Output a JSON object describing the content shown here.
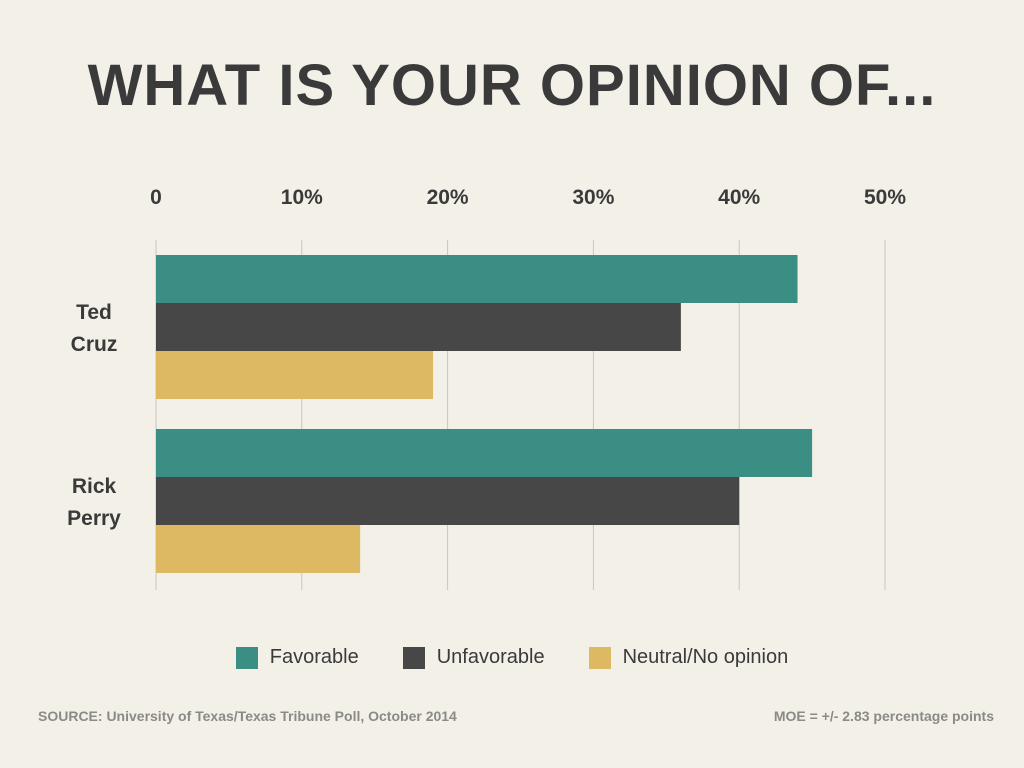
{
  "colors": {
    "favorable": "#3a8e84",
    "unfavorable": "#474747",
    "neutral": "#dcb962",
    "grid": "#c9c6bd",
    "text": "#3a3a3a"
  },
  "chart_data": {
    "type": "bar",
    "orientation": "horizontal",
    "title": "WHAT IS YOUR OPINION OF...",
    "categories": [
      [
        "Ted",
        "Cruz"
      ],
      [
        "Rick",
        "Perry"
      ]
    ],
    "series": [
      {
        "name": "Favorable",
        "color_key": "favorable",
        "values": [
          44,
          45
        ]
      },
      {
        "name": "Unfavorable",
        "color_key": "unfavorable",
        "values": [
          36,
          40
        ]
      },
      {
        "name": "Neutral/No opinion",
        "color_key": "neutral",
        "values": [
          19,
          14
        ]
      }
    ],
    "xlim": [
      0,
      50
    ],
    "ticks": [
      {
        "value": 0,
        "label": "0"
      },
      {
        "value": 10,
        "label": "10%"
      },
      {
        "value": 20,
        "label": "20%"
      },
      {
        "value": 30,
        "label": "30%"
      },
      {
        "value": 40,
        "label": "40%"
      },
      {
        "value": 50,
        "label": "50%"
      }
    ],
    "grid": true,
    "legend_position": "bottom"
  },
  "footer": {
    "source": "SOURCE: University of Texas/Texas Tribune Poll, October 2014",
    "moe": "MOE = +/- 2.83 percentage points"
  }
}
